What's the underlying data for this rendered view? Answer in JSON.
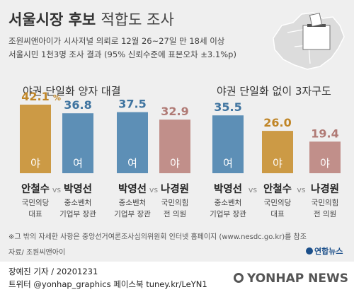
{
  "header": {
    "title_bold": "서울시장 후보",
    "title_light": "적합도 조사",
    "line1": "조원씨앤아이가 시사저널 의뢰로 12월 26~27일 만 18세 이상",
    "line2": "서울시민 1천3명 조사 결과 (95% 신뢰수준에 표본오차 ±3.1%p)"
  },
  "chart_data": [
    {
      "type": "bar",
      "title": "야권 단일화 양자 대결",
      "unit": "%",
      "ylim": [
        0,
        50
      ],
      "matchups": [
        {
          "vs": "vs",
          "candidates": [
            {
              "name": "안철수",
              "value": 42.1,
              "value_label": "42.1",
              "unit_label": "%",
              "party_mark": "야",
              "desc1": "국민의당",
              "desc2": "대표",
              "color": "#cc9a45",
              "value_color": "#c08628"
            },
            {
              "name": "박영선",
              "value": 36.8,
              "value_label": "36.8",
              "unit_label": "",
              "party_mark": "여",
              "desc1": "중소벤처",
              "desc2": "기업부 장관",
              "color": "#5d8fb6",
              "value_color": "#3f74a0"
            }
          ]
        },
        {
          "vs": "vs",
          "candidates": [
            {
              "name": "박영선",
              "value": 37.5,
              "value_label": "37.5",
              "unit_label": "",
              "party_mark": "여",
              "desc1": "중소벤처",
              "desc2": "기업부 장관",
              "color": "#5d8fb6",
              "value_color": "#3f74a0"
            },
            {
              "name": "나경원",
              "value": 32.9,
              "value_label": "32.9",
              "unit_label": "",
              "party_mark": "야",
              "desc1": "국민의힘",
              "desc2": "전 의원",
              "color": "#c18f8a",
              "value_color": "#b07a75"
            }
          ]
        }
      ]
    },
    {
      "type": "bar",
      "title": "야권 단일화 없이 3자구도",
      "unit": "%",
      "ylim": [
        0,
        50
      ],
      "vs": [
        "vs",
        "vs"
      ],
      "candidates": [
        {
          "name": "박영선",
          "value": 35.5,
          "value_label": "35.5",
          "party_mark": "여",
          "desc1": "중소벤처",
          "desc2": "기업부 장관",
          "color": "#5d8fb6",
          "value_color": "#3f74a0"
        },
        {
          "name": "안철수",
          "value": 26.0,
          "value_label": "26.0",
          "party_mark": "야",
          "desc1": "국민의당",
          "desc2": "대표",
          "color": "#cc9a45",
          "value_color": "#c08628"
        },
        {
          "name": "나경원",
          "value": 19.4,
          "value_label": "19.4",
          "party_mark": "야",
          "desc1": "국민의힘",
          "desc2": "전 의원",
          "color": "#c18f8a",
          "value_color": "#b07a75"
        }
      ]
    }
  ],
  "footer": {
    "note": "※그 밖의 자세한 사항은 중앙선거여론조사심의위원회 인터넷 홈페이지 (www.nesdc.go.kr)를 참조",
    "source": "자료/ 조원씨앤아이",
    "logo_text": "연합뉴스",
    "author": "장예진 기자 / 20201231",
    "social": "트위터 @yonhap_graphics  페이스북 tuney.kr/LeYN1",
    "watermark": "YONHAP NEWS"
  },
  "icons": {
    "map": "seoul-map-ballot-box-icon",
    "logo": "yonhap-logo-icon"
  }
}
